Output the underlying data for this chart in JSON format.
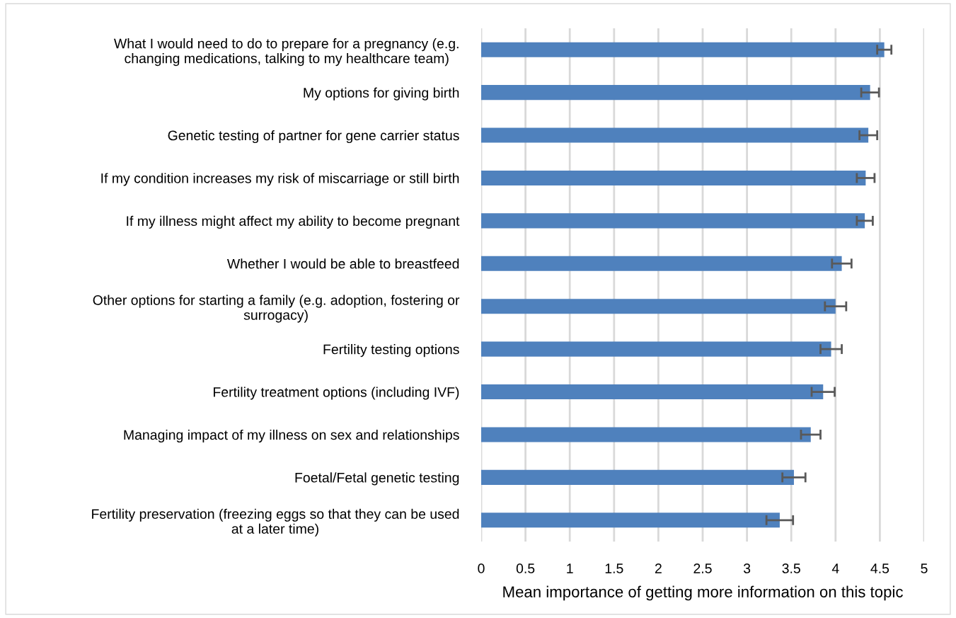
{
  "chart_data": {
    "type": "bar",
    "orientation": "horizontal",
    "xlabel": "Mean importance of getting more information on this topic",
    "categories": [
      "What I would need to do to prepare for a pregnancy (e.g. changing medications, talking to my healthcare team)",
      "My options for giving birth",
      "Genetic testing of partner for gene carrier status",
      "If my condition increases my risk of miscarriage or still birth",
      "If my illness might affect my ability to become pregnant",
      "Whether I would be able to breastfeed",
      "Other options for starting a family (e.g. adoption, fostering or surrogacy)",
      "Fertility testing options",
      "Fertility treatment options (including IVF)",
      "Managing impact of my illness on sex and relationships",
      "Foetal/Fetal genetic testing",
      "Fertility preservation (freezing eggs so that they can be used at a later time)"
    ],
    "values": [
      4.55,
      4.39,
      4.37,
      4.34,
      4.33,
      4.07,
      4.0,
      3.95,
      3.86,
      3.72,
      3.53,
      3.37
    ],
    "errors": [
      0.08,
      0.1,
      0.1,
      0.1,
      0.09,
      0.11,
      0.12,
      0.12,
      0.13,
      0.11,
      0.13,
      0.15
    ],
    "color": "#4f81bd",
    "xlim": [
      0,
      5
    ],
    "xticks": [
      0,
      0.5,
      1,
      1.5,
      2,
      2.5,
      3,
      3.5,
      4,
      4.5,
      5
    ],
    "grid": "x"
  }
}
